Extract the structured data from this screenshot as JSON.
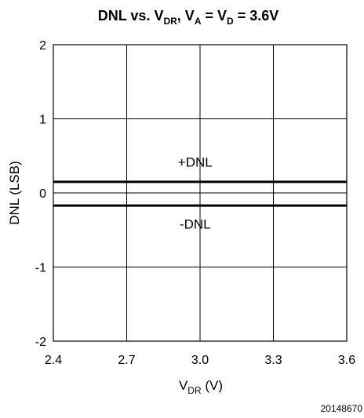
{
  "chart_data": {
    "type": "line",
    "title": {
      "main": "DNL vs. V",
      "sub1": "DR",
      "mid": ", V",
      "sub2": "A",
      "mid2": " = V",
      "sub3": "D",
      "end": " = 3.6V"
    },
    "xlabel": {
      "main": "V",
      "sub": "DR",
      "unit": " (V)"
    },
    "ylabel": "DNL (LSB)",
    "xlim": [
      2.4,
      3.6
    ],
    "ylim": [
      -2,
      2
    ],
    "x_ticks": [
      2.4,
      2.7,
      3.0,
      3.3,
      3.6
    ],
    "x_tick_labels": [
      "2.4",
      "2.7",
      "3.0",
      "3.3",
      "3.6"
    ],
    "y_ticks": [
      -2,
      -1,
      0,
      1,
      2
    ],
    "y_tick_labels": [
      "-2",
      "-1",
      "0",
      "1",
      "2"
    ],
    "grid": true,
    "series": [
      {
        "name": "+DNL",
        "x": [
          2.4,
          2.7,
          3.0,
          3.3,
          3.6
        ],
        "y": [
          0.15,
          0.15,
          0.15,
          0.15,
          0.15
        ]
      },
      {
        "name": "-DNL",
        "x": [
          2.4,
          2.7,
          3.0,
          3.3,
          3.6
        ],
        "y": [
          -0.17,
          -0.17,
          -0.17,
          -0.17,
          -0.17
        ]
      }
    ],
    "annotations": [
      {
        "text": "+DNL",
        "x": 2.98,
        "y": 0.42
      },
      {
        "text": "-DNL",
        "x": 2.98,
        "y": -0.42
      }
    ],
    "figure_id": "20148670"
  }
}
